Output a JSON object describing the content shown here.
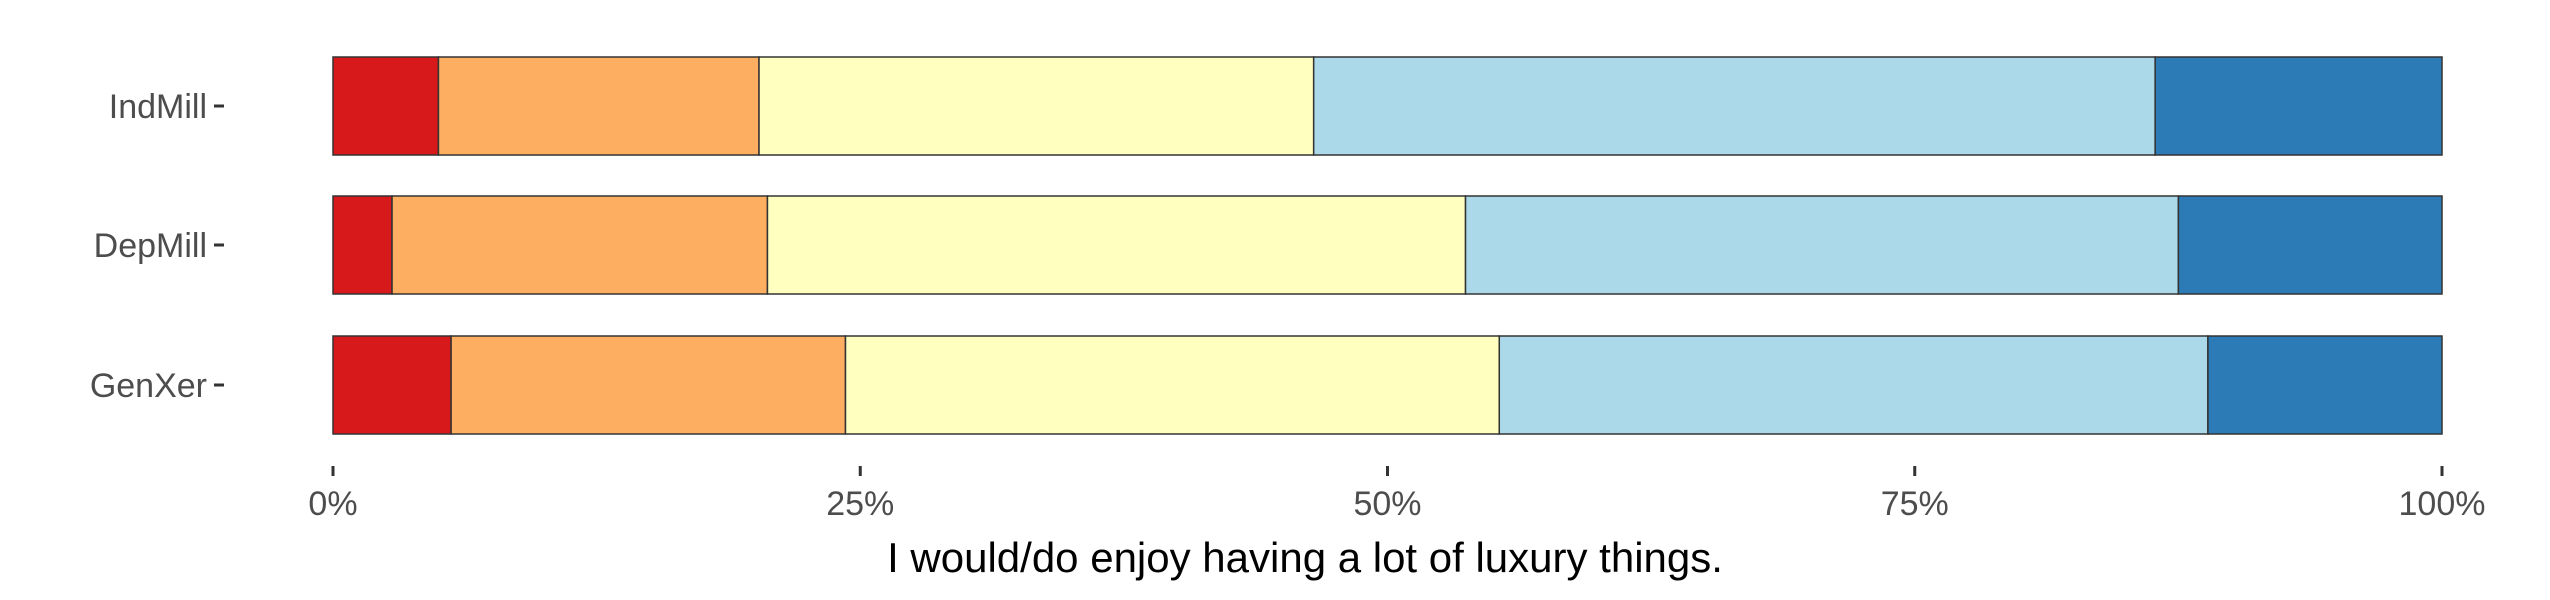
{
  "chart_data": {
    "type": "bar",
    "orientation": "horizontal",
    "stacked": true,
    "normalized": true,
    "title": "",
    "xlabel": "I would/do enjoy having a lot of luxury things.",
    "ylabel": "",
    "categories": [
      "IndMill",
      "DepMill",
      "GenXer"
    ],
    "xlim": [
      0,
      100
    ],
    "x_ticks": [
      "0%",
      "25%",
      "50%",
      "75%",
      "100%"
    ],
    "grid": false,
    "legend": "none",
    "series": [
      {
        "color": "#d7191c",
        "values": [
          5,
          2.8,
          5.6
        ]
      },
      {
        "color": "#fdae61",
        "values": [
          15.2,
          17.8,
          18.7
        ]
      },
      {
        "color": "#ffffbf",
        "values": [
          26.3,
          33.1,
          31
        ]
      },
      {
        "color": "#abd9e9",
        "values": [
          39.9,
          33.8,
          33.6
        ]
      },
      {
        "color": "#2c7bb6",
        "values": [
          13.6,
          12.5,
          11.1
        ]
      }
    ]
  }
}
